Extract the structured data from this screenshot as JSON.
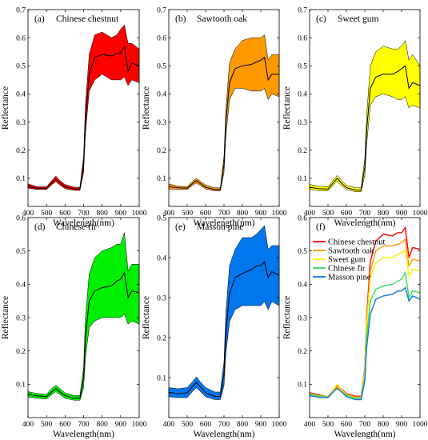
{
  "chart_data": [
    {
      "type": "area",
      "panel_label": "(a)",
      "title": "Chinese chestnut",
      "xlabel": "Wavelength(nm)",
      "ylabel": "Reflectance",
      "xlim": [
        400,
        1000
      ],
      "ylim": [
        0,
        0.7
      ],
      "xticks": [
        400,
        500,
        600,
        700,
        800,
        900,
        1000
      ],
      "yticks": [
        0.1,
        0.2,
        0.3,
        0.4,
        0.5,
        0.6,
        0.7
      ],
      "fill_color": "#ff0000",
      "x": [
        400,
        450,
        500,
        530,
        550,
        570,
        600,
        650,
        680,
        700,
        710,
        730,
        760,
        800,
        850,
        880,
        900,
        920,
        940,
        960,
        1000
      ],
      "mean": [
        0.07,
        0.065,
        0.065,
        0.085,
        0.097,
        0.085,
        0.07,
        0.062,
        0.062,
        0.15,
        0.3,
        0.47,
        0.53,
        0.54,
        0.535,
        0.545,
        0.545,
        0.57,
        0.48,
        0.51,
        0.5
      ],
      "lower": [
        0.065,
        0.06,
        0.06,
        0.078,
        0.088,
        0.077,
        0.063,
        0.057,
        0.057,
        0.12,
        0.26,
        0.41,
        0.45,
        0.47,
        0.45,
        0.45,
        0.45,
        0.46,
        0.43,
        0.45,
        0.44
      ],
      "upper": [
        0.08,
        0.07,
        0.07,
        0.093,
        0.108,
        0.093,
        0.078,
        0.068,
        0.068,
        0.18,
        0.36,
        0.54,
        0.61,
        0.62,
        0.6,
        0.61,
        0.63,
        0.645,
        0.58,
        0.58,
        0.56
      ]
    },
    {
      "type": "area",
      "panel_label": "(b)",
      "title": "Sawtooth oak",
      "xlabel": "Wavelength(nm)",
      "ylabel": "Reflectance",
      "xlim": [
        400,
        1000
      ],
      "ylim": [
        0,
        0.7
      ],
      "xticks": [
        400,
        500,
        600,
        700,
        800,
        900,
        1000
      ],
      "yticks": [
        0.1,
        0.2,
        0.3,
        0.4,
        0.5,
        0.6,
        0.7
      ],
      "fill_color": "#ff9900",
      "x": [
        400,
        450,
        500,
        530,
        550,
        570,
        600,
        650,
        680,
        700,
        710,
        730,
        760,
        800,
        850,
        880,
        900,
        920,
        940,
        960,
        1000
      ],
      "mean": [
        0.07,
        0.066,
        0.065,
        0.082,
        0.092,
        0.082,
        0.068,
        0.06,
        0.06,
        0.15,
        0.3,
        0.44,
        0.49,
        0.5,
        0.505,
        0.515,
        0.52,
        0.53,
        0.45,
        0.47,
        0.47
      ],
      "lower": [
        0.062,
        0.06,
        0.06,
        0.075,
        0.083,
        0.075,
        0.062,
        0.055,
        0.055,
        0.12,
        0.25,
        0.38,
        0.42,
        0.42,
        0.41,
        0.41,
        0.41,
        0.42,
        0.38,
        0.4,
        0.39
      ],
      "upper": [
        0.08,
        0.072,
        0.07,
        0.09,
        0.1,
        0.09,
        0.076,
        0.066,
        0.066,
        0.18,
        0.34,
        0.51,
        0.56,
        0.59,
        0.6,
        0.6,
        0.6,
        0.61,
        0.52,
        0.54,
        0.54
      ]
    },
    {
      "type": "area",
      "panel_label": "(c)",
      "title": "Sweet gum",
      "xlabel": "Wavelength(nm)",
      "ylabel": "Reflectance",
      "xlim": [
        400,
        1000
      ],
      "ylim": [
        0,
        0.7
      ],
      "xticks": [
        400,
        500,
        600,
        700,
        800,
        900,
        1000
      ],
      "yticks": [
        0.1,
        0.2,
        0.3,
        0.4,
        0.5,
        0.6,
        0.7
      ],
      "fill_color": "#ffff00",
      "x": [
        400,
        450,
        500,
        530,
        550,
        570,
        600,
        650,
        680,
        700,
        710,
        730,
        760,
        800,
        850,
        880,
        900,
        920,
        940,
        960,
        1000
      ],
      "mean": [
        0.068,
        0.063,
        0.062,
        0.085,
        0.1,
        0.085,
        0.067,
        0.058,
        0.058,
        0.14,
        0.27,
        0.42,
        0.46,
        0.47,
        0.47,
        0.48,
        0.49,
        0.5,
        0.42,
        0.44,
        0.43
      ],
      "lower": [
        0.06,
        0.056,
        0.055,
        0.076,
        0.09,
        0.076,
        0.06,
        0.052,
        0.052,
        0.11,
        0.22,
        0.36,
        0.39,
        0.4,
        0.39,
        0.38,
        0.38,
        0.39,
        0.35,
        0.36,
        0.35
      ],
      "upper": [
        0.078,
        0.072,
        0.07,
        0.095,
        0.11,
        0.095,
        0.075,
        0.066,
        0.066,
        0.17,
        0.32,
        0.5,
        0.55,
        0.57,
        0.56,
        0.56,
        0.57,
        0.59,
        0.52,
        0.54,
        0.5
      ]
    },
    {
      "type": "area",
      "panel_label": "(d)",
      "title": "Chinese fir",
      "xlabel": "Wavelength(nm)",
      "ylabel": "Reflectance",
      "xlim": [
        400,
        1000
      ],
      "ylim": [
        0,
        0.6
      ],
      "xticks": [
        400,
        500,
        600,
        700,
        800,
        900,
        1000
      ],
      "yticks": [
        0.1,
        0.2,
        0.3,
        0.4,
        0.5,
        0.6
      ],
      "fill_color": "#00ee00",
      "x": [
        400,
        450,
        500,
        530,
        550,
        570,
        600,
        650,
        680,
        700,
        710,
        730,
        760,
        800,
        850,
        880,
        900,
        920,
        940,
        960,
        1000
      ],
      "mean": [
        0.07,
        0.065,
        0.063,
        0.078,
        0.087,
        0.078,
        0.066,
        0.058,
        0.058,
        0.12,
        0.24,
        0.35,
        0.38,
        0.39,
        0.395,
        0.41,
        0.415,
        0.435,
        0.36,
        0.38,
        0.375
      ],
      "lower": [
        0.062,
        0.058,
        0.056,
        0.07,
        0.078,
        0.07,
        0.058,
        0.052,
        0.052,
        0.09,
        0.18,
        0.27,
        0.29,
        0.3,
        0.3,
        0.3,
        0.3,
        0.31,
        0.28,
        0.29,
        0.28
      ],
      "upper": [
        0.078,
        0.072,
        0.07,
        0.088,
        0.097,
        0.088,
        0.074,
        0.066,
        0.066,
        0.15,
        0.3,
        0.43,
        0.48,
        0.5,
        0.51,
        0.52,
        0.52,
        0.555,
        0.44,
        0.46,
        0.46
      ]
    },
    {
      "type": "area",
      "panel_label": "(e)",
      "title": "Masson pine",
      "xlabel": "Wavelength(nm)",
      "ylabel": "Reflectance",
      "xlim": [
        400,
        1000
      ],
      "ylim": [
        0,
        0.5
      ],
      "xticks": [
        400,
        500,
        600,
        700,
        800,
        900,
        1000
      ],
      "yticks": [
        0.1,
        0.2,
        0.3,
        0.4,
        0.5
      ],
      "fill_color": "#0077ee",
      "x": [
        400,
        450,
        500,
        530,
        550,
        570,
        600,
        650,
        680,
        700,
        710,
        730,
        760,
        800,
        850,
        880,
        900,
        920,
        940,
        960,
        1000
      ],
      "mean": [
        0.063,
        0.06,
        0.062,
        0.078,
        0.088,
        0.078,
        0.062,
        0.053,
        0.053,
        0.11,
        0.21,
        0.31,
        0.35,
        0.36,
        0.37,
        0.38,
        0.38,
        0.39,
        0.35,
        0.365,
        0.355
      ],
      "lower": [
        0.052,
        0.05,
        0.05,
        0.066,
        0.075,
        0.066,
        0.052,
        0.045,
        0.045,
        0.08,
        0.16,
        0.24,
        0.27,
        0.28,
        0.28,
        0.28,
        0.28,
        0.29,
        0.27,
        0.29,
        0.28
      ],
      "upper": [
        0.075,
        0.072,
        0.075,
        0.09,
        0.102,
        0.09,
        0.075,
        0.064,
        0.064,
        0.14,
        0.26,
        0.38,
        0.42,
        0.45,
        0.45,
        0.46,
        0.47,
        0.48,
        0.42,
        0.43,
        0.43
      ]
    },
    {
      "type": "line",
      "panel_label": "(f)",
      "title": "",
      "xlabel": "Wavelength(nm)",
      "ylabel": "Reflectance",
      "xlim": [
        400,
        1000
      ],
      "ylim": [
        0,
        0.6
      ],
      "xticks": [
        400,
        500,
        600,
        700,
        800,
        900,
        1000
      ],
      "yticks": [
        0.1,
        0.2,
        0.3,
        0.4,
        0.5,
        0.6
      ],
      "legend_position": "top-left",
      "x": [
        400,
        450,
        500,
        530,
        550,
        570,
        600,
        650,
        680,
        700,
        710,
        730,
        760,
        800,
        850,
        880,
        900,
        920,
        940,
        960,
        1000
      ],
      "series": [
        {
          "name": "Chinese chestnut",
          "color": "#ff0000",
          "values": [
            0.075,
            0.068,
            0.062,
            0.085,
            0.097,
            0.087,
            0.072,
            0.064,
            0.064,
            0.15,
            0.3,
            0.47,
            0.53,
            0.55,
            0.545,
            0.555,
            0.555,
            0.57,
            0.48,
            0.51,
            0.505
          ]
        },
        {
          "name": "Sawtooth oak",
          "color": "#ff9900",
          "values": [
            0.073,
            0.066,
            0.062,
            0.082,
            0.093,
            0.084,
            0.07,
            0.062,
            0.062,
            0.145,
            0.29,
            0.44,
            0.5,
            0.515,
            0.515,
            0.52,
            0.525,
            0.535,
            0.455,
            0.475,
            0.47
          ]
        },
        {
          "name": "Sweet gum",
          "color": "#ffee00",
          "values": [
            0.07,
            0.064,
            0.06,
            0.085,
            0.1,
            0.086,
            0.068,
            0.059,
            0.059,
            0.14,
            0.27,
            0.42,
            0.465,
            0.48,
            0.48,
            0.49,
            0.495,
            0.5,
            0.425,
            0.445,
            0.44
          ]
        },
        {
          "name": "Chinese fir",
          "color": "#33dd55",
          "values": [
            0.071,
            0.065,
            0.061,
            0.078,
            0.087,
            0.079,
            0.067,
            0.058,
            0.058,
            0.12,
            0.24,
            0.35,
            0.385,
            0.395,
            0.4,
            0.41,
            0.415,
            0.435,
            0.36,
            0.38,
            0.375
          ]
        },
        {
          "name": "Masson pine",
          "color": "#1177dd",
          "values": [
            0.066,
            0.061,
            0.06,
            0.078,
            0.088,
            0.079,
            0.063,
            0.054,
            0.054,
            0.11,
            0.21,
            0.31,
            0.355,
            0.365,
            0.37,
            0.38,
            0.38,
            0.39,
            0.35,
            0.365,
            0.355
          ]
        }
      ]
    }
  ]
}
